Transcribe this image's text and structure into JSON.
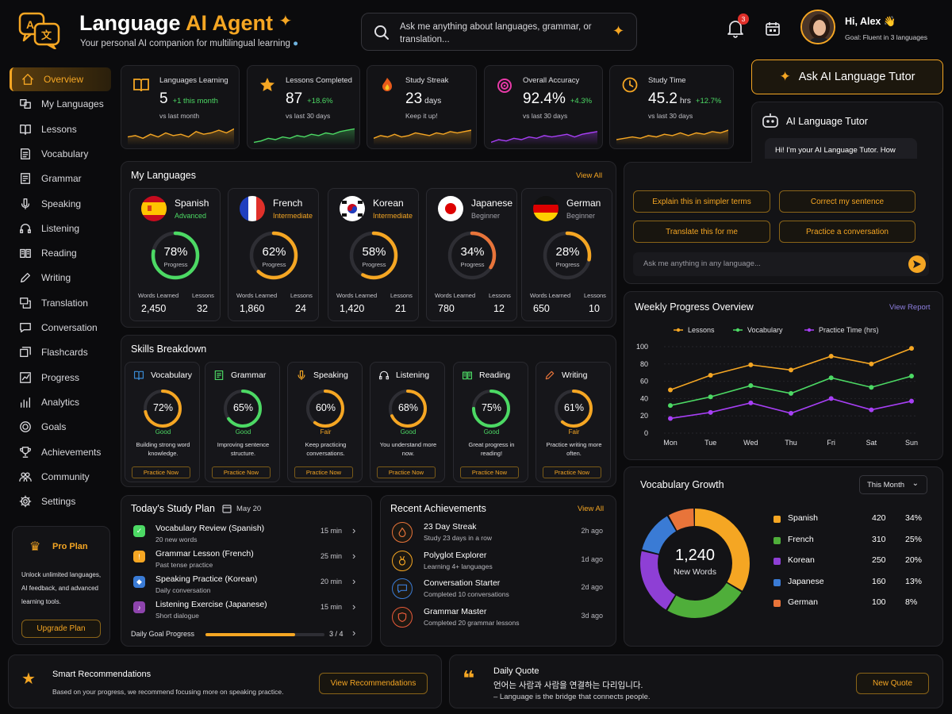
{
  "header": {
    "title_main": "Language ",
    "title_accent": "AI Agent",
    "subtitle": "Your personal AI companion for multilingual learning",
    "logo_text": "A",
    "search_placeholder": "Ask me anything about languages, grammar, or translation...",
    "notification_count": "3",
    "user_greeting": "Hi, Alex 👋",
    "user_goal": "Goal: Fluent in 3 languages"
  },
  "sidebar": {
    "items": [
      {
        "label": "Overview",
        "icon": "home-icon"
      },
      {
        "label": "My Languages",
        "icon": "translate-icon"
      },
      {
        "label": "Lessons",
        "icon": "book-icon"
      },
      {
        "label": "Vocabulary",
        "icon": "vocabulary-icon"
      },
      {
        "label": "Grammar",
        "icon": "grammar-icon"
      },
      {
        "label": "Speaking",
        "icon": "microphone-icon"
      },
      {
        "label": "Listening",
        "icon": "headphones-icon"
      },
      {
        "label": "Reading",
        "icon": "reading-icon"
      },
      {
        "label": "Writing",
        "icon": "pencil-icon"
      },
      {
        "label": "Translation",
        "icon": "translation-icon"
      },
      {
        "label": "Conversation",
        "icon": "chat-icon"
      },
      {
        "label": "Flashcards",
        "icon": "flashcards-icon"
      },
      {
        "label": "Progress",
        "icon": "progress-icon"
      },
      {
        "label": "Analytics",
        "icon": "analytics-icon"
      },
      {
        "label": "Goals",
        "icon": "goal-icon"
      },
      {
        "label": "Achievements",
        "icon": "trophy-icon"
      },
      {
        "label": "Community",
        "icon": "community-icon"
      },
      {
        "label": "Settings",
        "icon": "gear-icon"
      }
    ],
    "pro_plan": {
      "title": "Pro Plan",
      "desc": "Unlock unlimited languages, AI feedback, and advanced learning tools.",
      "button": "Upgrade Plan"
    }
  },
  "stats": [
    {
      "label": "Languages Learning",
      "value": "5",
      "unit": "",
      "delta": "+1 this month",
      "sub": "vs last month",
      "color": "#f5a623"
    },
    {
      "label": "Lessons Completed",
      "value": "87",
      "unit": "",
      "delta": "+18.6%",
      "sub": "vs last 30 days",
      "color": "#4cd964"
    },
    {
      "label": "Study Streak",
      "value": "23",
      "unit": "days",
      "delta": "",
      "sub": "Keep it up!",
      "color": "#f5a623"
    },
    {
      "label": "Overall Accuracy",
      "value": "92.4%",
      "unit": "",
      "delta": "+4.3%",
      "sub": "vs last 30 days",
      "color": "#a73ff5"
    },
    {
      "label": "Study Time",
      "value": "45.2",
      "unit": "hrs",
      "delta": "+12.7%",
      "sub": "vs last 30 days",
      "color": "#f5a623"
    }
  ],
  "ask_tutor_button": "Ask AI Language Tutor",
  "tutor": {
    "title": "AI Language Tutor",
    "message": "Hi! I'm your AI Language Tutor. How can I help you today?",
    "suggestions": [
      "Explain this in simpler terms",
      "Correct my sentence",
      "Translate this for me",
      "Practice a conversation"
    ],
    "input_placeholder": "Ask me anything in any language..."
  },
  "my_languages": {
    "title": "My Languages",
    "view_all": "View All",
    "progress_label": "Progress",
    "words_label": "Words Learned",
    "lessons_label": "Lessons",
    "items": [
      {
        "name": "Spanish",
        "level": "Advanced",
        "level_color": "#4cd964",
        "progress": 78,
        "progress_text": "78%",
        "words": "2,450",
        "lessons": "32",
        "ring": "#4cd964"
      },
      {
        "name": "French",
        "level": "Intermediate",
        "level_color": "#f5a623",
        "progress": 62,
        "progress_text": "62%",
        "words": "1,860",
        "lessons": "24",
        "ring": "#f5a623"
      },
      {
        "name": "Korean",
        "level": "Intermediate",
        "level_color": "#f5a623",
        "progress": 58,
        "progress_text": "58%",
        "words": "1,420",
        "lessons": "21",
        "ring": "#f5a623"
      },
      {
        "name": "Japanese",
        "level": "Beginner",
        "level_color": "#a0a0a8",
        "progress": 34,
        "progress_text": "34%",
        "words": "780",
        "lessons": "12",
        "ring": "#e8743a"
      },
      {
        "name": "German",
        "level": "Beginner",
        "level_color": "#a0a0a8",
        "progress": 28,
        "progress_text": "28%",
        "words": "650",
        "lessons": "10",
        "ring": "#f5a623"
      }
    ]
  },
  "skills": {
    "title": "Skills Breakdown",
    "practice_label": "Practice Now",
    "items": [
      {
        "name": "Vocabulary",
        "icon": "book-icon",
        "progress": 72,
        "progress_text": "72%",
        "rating": "Good",
        "rating_color": "#4cd964",
        "desc": "Building strong word knowledge.",
        "ring": "#f5a623"
      },
      {
        "name": "Grammar",
        "icon": "grammar-icon",
        "progress": 65,
        "progress_text": "65%",
        "rating": "Good",
        "rating_color": "#4cd964",
        "desc": "Improving sentence structure.",
        "ring": "#4cd964"
      },
      {
        "name": "Speaking",
        "icon": "microphone-icon",
        "progress": 60,
        "progress_text": "60%",
        "rating": "Fair",
        "rating_color": "#f5a623",
        "desc": "Keep practicing conversations.",
        "ring": "#f5a623"
      },
      {
        "name": "Listening",
        "icon": "headphones-icon",
        "progress": 68,
        "progress_text": "68%",
        "rating": "Good",
        "rating_color": "#4cd964",
        "desc": "You understand more now.",
        "ring": "#f5a623"
      },
      {
        "name": "Reading",
        "icon": "reading-icon",
        "progress": 75,
        "progress_text": "75%",
        "rating": "Good",
        "rating_color": "#4cd964",
        "desc": "Great progress in reading!",
        "ring": "#4cd964"
      },
      {
        "name": "Writing",
        "icon": "pencil-icon",
        "progress": 61,
        "progress_text": "61%",
        "rating": "Fair",
        "rating_color": "#f5a623",
        "desc": "Practice writing more often.",
        "ring": "#f5a623"
      }
    ]
  },
  "study_plan": {
    "title": "Today's Study Plan",
    "date": "May 20",
    "items": [
      {
        "title": "Vocabulary Review (Spanish)",
        "sub": "20 new words",
        "duration": "15 min",
        "color": "#4cd964"
      },
      {
        "title": "Grammar Lesson (French)",
        "sub": "Past tense practice",
        "duration": "25 min",
        "color": "#f5a623"
      },
      {
        "title": "Speaking Practice (Korean)",
        "sub": "Daily conversation",
        "duration": "20 min",
        "color": "#3a7bd5"
      },
      {
        "title": "Listening Exercise (Japanese)",
        "sub": "Short dialogue",
        "duration": "15 min",
        "color": "#8e44ad"
      }
    ],
    "goal_label": "Daily Goal Progress",
    "goal_progress": 0.75,
    "goal_text": "3 / 4"
  },
  "achievements": {
    "title": "Recent Achievements",
    "view_all": "View All",
    "items": [
      {
        "title": "23 Day Streak",
        "sub": "Study 23 days in a row",
        "time": "2h ago",
        "icon": "flame-icon",
        "color": "#e8743a"
      },
      {
        "title": "Polyglot Explorer",
        "sub": "Learning 4+ languages",
        "time": "1d ago",
        "icon": "medal-icon",
        "color": "#f5a623"
      },
      {
        "title": "Conversation Starter",
        "sub": "Completed 10 conversations",
        "time": "2d ago",
        "icon": "chat-icon",
        "color": "#3a7bd5"
      },
      {
        "title": "Grammar Master",
        "sub": "Completed 20 grammar lessons",
        "time": "3d ago",
        "icon": "shield-icon",
        "color": "#e85a3a"
      }
    ]
  },
  "weekly_chart": {
    "title": "Weekly Progress Overview",
    "view_report": "View Report"
  },
  "chart_data": {
    "type": "line",
    "categories": [
      "Mon",
      "Tue",
      "Wed",
      "Thu",
      "Fri",
      "Sat",
      "Sun"
    ],
    "ylim": [
      0,
      100
    ],
    "yticks": [
      0,
      20,
      40,
      60,
      80,
      100
    ],
    "series": [
      {
        "name": "Lessons",
        "color": "#f5a623",
        "values": [
          50,
          67,
          79,
          73,
          89,
          80,
          98
        ]
      },
      {
        "name": "Vocabulary",
        "color": "#4cd964",
        "values": [
          32,
          42,
          55,
          46,
          64,
          53,
          66
        ]
      },
      {
        "name": "Practice Time (hrs)",
        "color": "#a73ff5",
        "values": [
          17,
          24,
          35,
          23,
          40,
          27,
          37
        ]
      }
    ]
  },
  "vocab_growth": {
    "title": "Vocabulary Growth",
    "period": "This Month",
    "total": "1,240",
    "total_label": "New Words",
    "items": [
      {
        "name": "Spanish",
        "count": "420",
        "pct": "34%",
        "value": 420,
        "color": "#f5a623"
      },
      {
        "name": "French",
        "count": "310",
        "pct": "25%",
        "value": 310,
        "color": "#4fae3a"
      },
      {
        "name": "Korean",
        "count": "250",
        "pct": "20%",
        "value": 250,
        "color": "#8e3fd5"
      },
      {
        "name": "Japanese",
        "count": "160",
        "pct": "13%",
        "value": 160,
        "color": "#3a7bd5"
      },
      {
        "name": "German",
        "count": "100",
        "pct": "8%",
        "value": 100,
        "color": "#e8743a"
      }
    ]
  },
  "recommendations": {
    "title": "Smart Recommendations",
    "desc": "Based on your progress, we recommend focusing more on speaking practice.",
    "button": "View Recommendations"
  },
  "quote": {
    "title": "Daily Quote",
    "korean": "언어는 사람과 사람을 연결하는 다리입니다.",
    "english": "– Language is the bridge that connects people.",
    "button": "New Quote"
  }
}
